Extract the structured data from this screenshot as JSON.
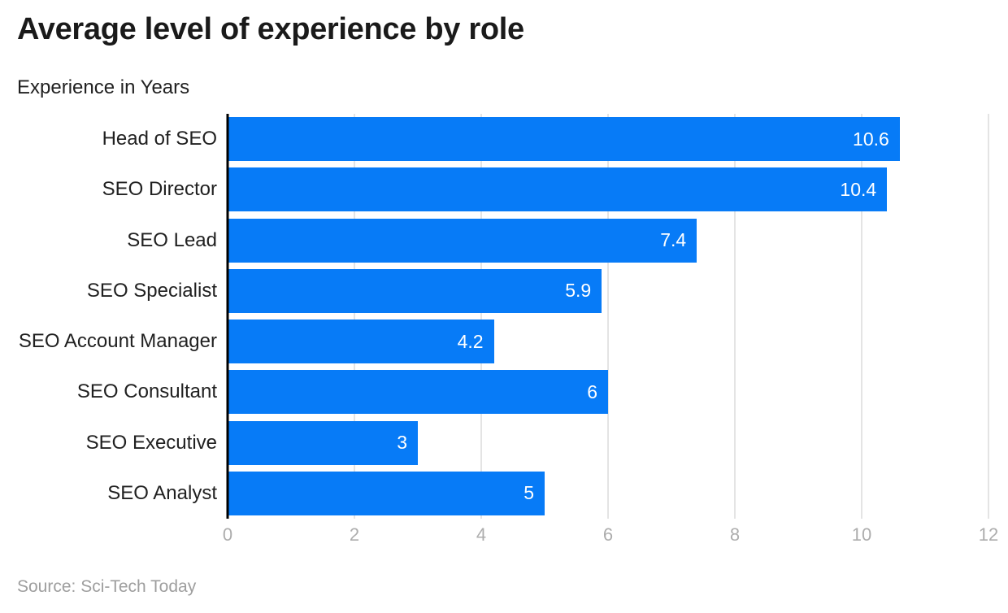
{
  "page": {
    "title": "Average level of experience by role",
    "subtitle": "Experience in Years",
    "source": "Source: Sci-Tech Today"
  },
  "chart_data": {
    "type": "bar",
    "orientation": "horizontal",
    "title": "Average level of experience by role",
    "xlabel": "",
    "ylabel": "Experience in Years",
    "categories": [
      "Head of SEO",
      "SEO Director",
      "SEO Lead",
      "SEO Specialist",
      "SEO Account Manager",
      "SEO Consultant",
      "SEO Executive",
      "SEO Analyst"
    ],
    "values": [
      10.6,
      10.4,
      7.4,
      5.9,
      4.2,
      6,
      3,
      5
    ],
    "value_labels": [
      "10.6",
      "10.4",
      "7.4",
      "5.9",
      "4.2",
      "6",
      "3",
      "5"
    ],
    "xlim": [
      0,
      12
    ],
    "xticks": [
      0,
      2,
      4,
      6,
      8,
      10,
      12
    ],
    "grid": true,
    "legend": false,
    "bar_color": "#077bf7",
    "gridline_color": "#e4e4e4",
    "axis_line_color": "#000000",
    "tick_label_color": "#adadad",
    "value_label_color": "#ffffff",
    "source": "Source: Sci-Tech Today"
  }
}
